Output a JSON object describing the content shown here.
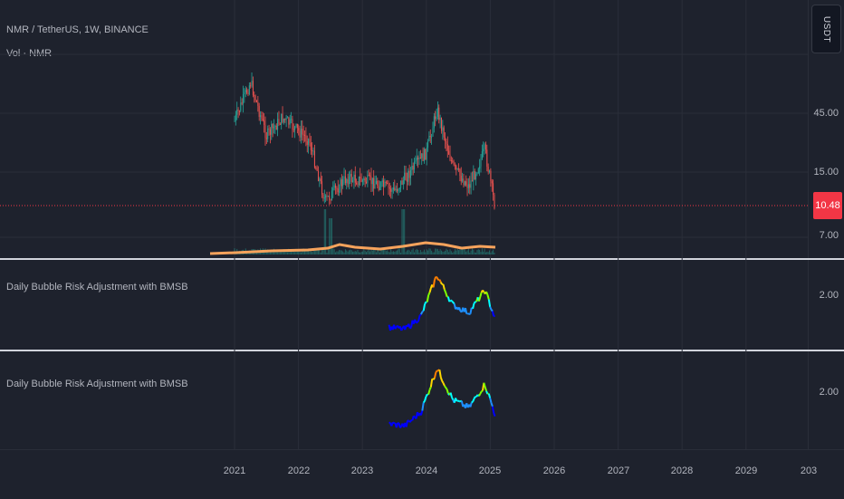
{
  "main_pane": {
    "symbol_legend": "NMR / TetherUS, 1W, BINANCE",
    "volume_legend": "Vol · NMR",
    "y_ticks": [
      "45.00",
      "15.00",
      "7.00"
    ],
    "last_price": "10.48",
    "currency_button": "USDT",
    "last_price_line_color": "#f23645"
  },
  "indicator_pane_1": {
    "title": "Daily Bubble Risk Adjustment with BMSB",
    "y_tick": "2.00"
  },
  "indicator_pane_2": {
    "title": "Daily Bubble Risk Adjustment with BMSB",
    "y_tick": "2.00"
  },
  "time_axis": {
    "labels": [
      "2021",
      "2022",
      "2023",
      "2024",
      "2025",
      "2026",
      "2027",
      "2028",
      "2029",
      "203"
    ]
  },
  "colors": {
    "background": "#1e222d",
    "up_candle": "#26a69a",
    "down_candle": "#ef5350",
    "volume_ma": "#f7a35c"
  },
  "chart_data": {
    "type": "line",
    "title": "",
    "note": "NMR/USDT weekly candles with volume; risk indicator lines colored by risk level",
    "price_series_approx": [
      {
        "x": "2021-01",
        "y": 40
      },
      {
        "x": "2021-04",
        "y": 72
      },
      {
        "x": "2021-07",
        "y": 32
      },
      {
        "x": "2021-10",
        "y": 42
      },
      {
        "x": "2022-03",
        "y": 30
      },
      {
        "x": "2022-06",
        "y": 12
      },
      {
        "x": "2022-10",
        "y": 17
      },
      {
        "x": "2023-03",
        "y": 16
      },
      {
        "x": "2023-07",
        "y": 14
      },
      {
        "x": "2024-01",
        "y": 25
      },
      {
        "x": "2024-03",
        "y": 48
      },
      {
        "x": "2024-06",
        "y": 20
      },
      {
        "x": "2024-09",
        "y": 15
      },
      {
        "x": "2024-12",
        "y": 26
      },
      {
        "x": "2025-02",
        "y": 10.48
      }
    ],
    "risk_series_approx": [
      {
        "x": "2023-06",
        "y": 0.5
      },
      {
        "x": "2023-09",
        "y": 0.45
      },
      {
        "x": "2023-12",
        "y": 0.8
      },
      {
        "x": "2024-03",
        "y": 1.9
      },
      {
        "x": "2024-06",
        "y": 1.1
      },
      {
        "x": "2024-09",
        "y": 0.9
      },
      {
        "x": "2024-12",
        "y": 1.5
      },
      {
        "x": "2025-02",
        "y": 0.7
      }
    ]
  }
}
